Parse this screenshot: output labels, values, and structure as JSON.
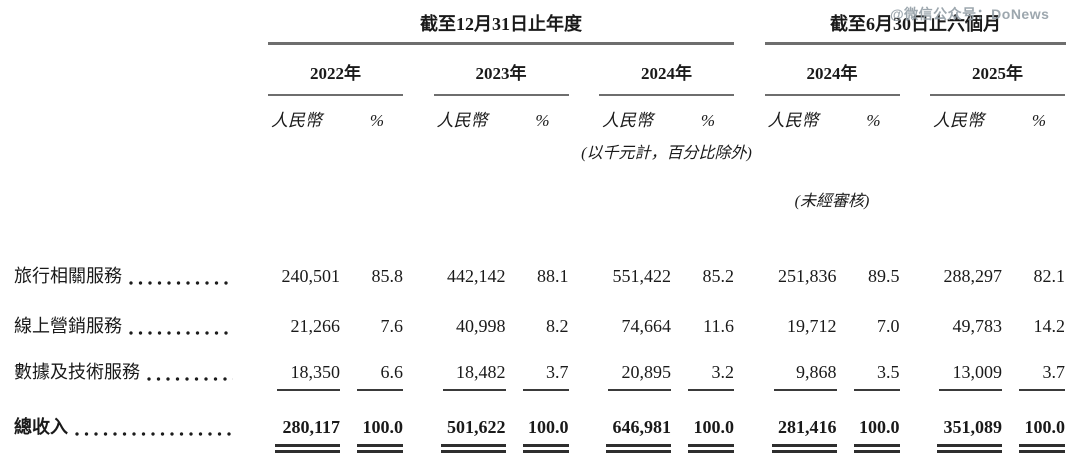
{
  "watermark": "@微信公众号：DoNews",
  "colors": {
    "text": "#1a1a1a",
    "rule_gray": "#6e6e6e",
    "underline_dark": "#2e2e2e",
    "watermark_gray": "#95a0a8",
    "background": "#ffffff"
  },
  "table": {
    "period_headers": [
      {
        "label": "截至12月31日止年度",
        "span": 3
      },
      {
        "label": "截至6月30日止六個月",
        "span": 2
      }
    ],
    "year_headers": [
      "2022年",
      "2023年",
      "2024年",
      "2024年",
      "2025年"
    ],
    "subheaders": {
      "rmb": "人民幣",
      "pct": "%"
    },
    "notes": {
      "units": "(以千元計，百分比除外)",
      "unaudited": "(未經審核)"
    },
    "rows": [
      {
        "label": "旅行相關服務",
        "cells": [
          {
            "rmb": "240,501",
            "pct": "85.8"
          },
          {
            "rmb": "442,142",
            "pct": "88.1"
          },
          {
            "rmb": "551,422",
            "pct": "85.2"
          },
          {
            "rmb": "251,836",
            "pct": "89.5"
          },
          {
            "rmb": "288,297",
            "pct": "82.1"
          }
        ]
      },
      {
        "label": "線上營銷服務",
        "cells": [
          {
            "rmb": "21,266",
            "pct": "7.6"
          },
          {
            "rmb": "40,998",
            "pct": "8.2"
          },
          {
            "rmb": "74,664",
            "pct": "11.6"
          },
          {
            "rmb": "19,712",
            "pct": "7.0"
          },
          {
            "rmb": "49,783",
            "pct": "14.2"
          }
        ]
      },
      {
        "label": "數據及技術服務",
        "cells": [
          {
            "rmb": "18,350",
            "pct": "6.6"
          },
          {
            "rmb": "18,482",
            "pct": "3.7"
          },
          {
            "rmb": "20,895",
            "pct": "3.2"
          },
          {
            "rmb": "9,868",
            "pct": "3.5"
          },
          {
            "rmb": "13,009",
            "pct": "3.7"
          }
        ]
      },
      {
        "label": "總收入",
        "cells": [
          {
            "rmb": "280,117",
            "pct": "100.0"
          },
          {
            "rmb": "501,622",
            "pct": "100.0"
          },
          {
            "rmb": "646,981",
            "pct": "100.0"
          },
          {
            "rmb": "281,416",
            "pct": "100.0"
          },
          {
            "rmb": "351,089",
            "pct": "100.0"
          }
        ]
      }
    ]
  }
}
